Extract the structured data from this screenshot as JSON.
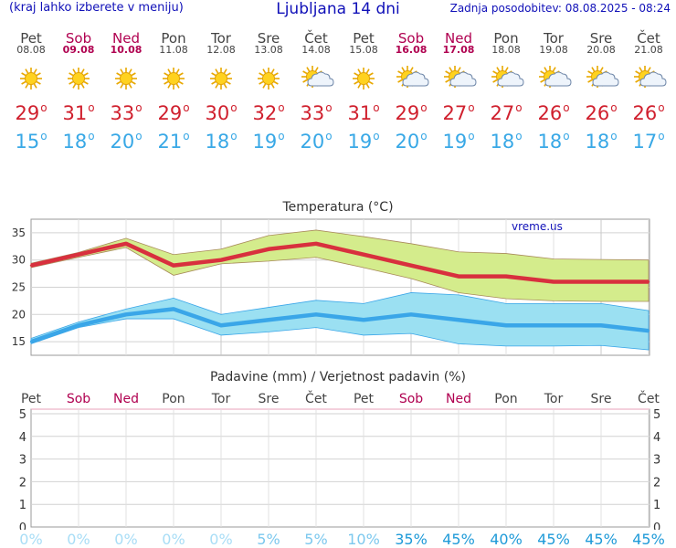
{
  "header": {
    "left": "(kraj lahko izberete v meniju)",
    "title": "Ljubljana 14 dni",
    "right": "Zadnja posodobitev: 08.08.2025 - 08:24"
  },
  "days": [
    {
      "name": "Pet",
      "date": "08.08",
      "weekend": false,
      "icon": "sun-icon",
      "tmax": "29",
      "tmin": "15"
    },
    {
      "name": "Sob",
      "date": "09.08",
      "weekend": true,
      "icon": "sun-icon",
      "tmax": "31",
      "tmin": "18"
    },
    {
      "name": "Ned",
      "date": "10.08",
      "weekend": true,
      "icon": "sun-icon",
      "tmax": "33",
      "tmin": "20"
    },
    {
      "name": "Pon",
      "date": "11.08",
      "weekend": false,
      "icon": "sun-icon",
      "tmax": "29",
      "tmin": "21"
    },
    {
      "name": "Tor",
      "date": "12.08",
      "weekend": false,
      "icon": "sun-icon",
      "tmax": "30",
      "tmin": "18"
    },
    {
      "name": "Sre",
      "date": "13.08",
      "weekend": false,
      "icon": "sun-icon",
      "tmax": "32",
      "tmin": "19"
    },
    {
      "name": "Čet",
      "date": "14.08",
      "weekend": false,
      "icon": "sun-cloud-icon",
      "tmax": "33",
      "tmin": "20"
    },
    {
      "name": "Pet",
      "date": "15.08",
      "weekend": false,
      "icon": "sun-icon",
      "tmax": "31",
      "tmin": "19"
    },
    {
      "name": "Sob",
      "date": "16.08",
      "weekend": true,
      "icon": "sun-cloud-icon",
      "tmax": "29",
      "tmin": "20"
    },
    {
      "name": "Ned",
      "date": "17.08",
      "weekend": true,
      "icon": "sun-cloud-icon",
      "tmax": "27",
      "tmin": "19"
    },
    {
      "name": "Pon",
      "date": "18.08",
      "weekend": false,
      "icon": "sun-cloud-icon",
      "tmax": "27",
      "tmin": "18"
    },
    {
      "name": "Tor",
      "date": "19.08",
      "weekend": false,
      "icon": "sun-cloud-icon",
      "tmax": "26",
      "tmin": "18"
    },
    {
      "name": "Sre",
      "date": "20.08",
      "weekend": false,
      "icon": "sun-cloud-icon",
      "tmax": "26",
      "tmin": "18"
    },
    {
      "name": "Čet",
      "date": "21.08",
      "weekend": false,
      "icon": "sun-cloud-icon",
      "tmax": "26",
      "tmin": "17"
    }
  ],
  "degree_symbol": "o",
  "watermark": "vreme.us",
  "colors": {
    "max_line": "#d8303e",
    "max_band": "#d4ec8c",
    "min_line": "#3aa6e8",
    "min_band": "#9be0f2",
    "weekend": "#b00050",
    "precip_line": "#e8a0b8"
  },
  "chart_data": [
    {
      "type": "line",
      "title": "Temperatura (°C)",
      "xlabel": "",
      "ylabel": "",
      "categories": [
        "08.08",
        "09.08",
        "10.08",
        "11.08",
        "12.08",
        "13.08",
        "14.08",
        "15.08",
        "16.08",
        "17.08",
        "18.08",
        "19.08",
        "20.08",
        "21.08"
      ],
      "ylim": [
        12.5,
        37.5
      ],
      "yticks": [
        15,
        20,
        25,
        30,
        35
      ],
      "grid": true,
      "series": [
        {
          "role": "max",
          "values": [
            29,
            31,
            33,
            29,
            30,
            32,
            33,
            31,
            29,
            27,
            27,
            26,
            26,
            26
          ]
        },
        {
          "role": "max_band_upper",
          "values": [
            29.4,
            31.4,
            34,
            31,
            32,
            34.5,
            35.5,
            34.3,
            33,
            31.5,
            31.2,
            30.2,
            30.1,
            30
          ]
        },
        {
          "role": "max_band_lower",
          "values": [
            28.6,
            30.5,
            32.3,
            27.2,
            29.3,
            29.8,
            30.5,
            28.6,
            26.6,
            24,
            22.9,
            22.5,
            22.4,
            22.4
          ]
        },
        {
          "role": "min",
          "values": [
            15,
            18,
            20,
            21,
            18,
            19,
            20,
            19,
            20,
            19,
            18,
            18,
            18,
            17
          ]
        },
        {
          "role": "min_band_upper",
          "values": [
            15.6,
            18.6,
            21,
            23,
            20,
            21.3,
            22.6,
            22,
            24,
            23.6,
            22,
            22,
            22,
            20.7
          ]
        },
        {
          "role": "min_band_lower",
          "values": [
            14.6,
            17.6,
            19.2,
            19.2,
            16.2,
            16.8,
            17.6,
            16.2,
            16.5,
            14.6,
            14.2,
            14.2,
            14.3,
            13.5
          ]
        }
      ]
    },
    {
      "type": "bar",
      "title": "Padavine (mm) / Verjetnost padavin (%)",
      "xlabel": "",
      "ylabel": "",
      "categories": [
        "Pet",
        "Sob",
        "Ned",
        "Pon",
        "Tor",
        "Sre",
        "Čet",
        "Pet",
        "Sob",
        "Ned",
        "Pon",
        "Tor",
        "Sre",
        "Čet"
      ],
      "ylim": [
        0,
        5.2
      ],
      "yticks": [
        0,
        1,
        2,
        3,
        4,
        5
      ],
      "grid": true,
      "series": [
        {
          "name": "mm",
          "values": [
            0,
            0,
            0,
            0,
            0,
            0,
            0,
            0,
            0,
            0,
            0,
            0,
            0,
            0
          ]
        }
      ],
      "probability": [
        "0%",
        "0%",
        "0%",
        "0%",
        "0%",
        "5%",
        "5%",
        "10%",
        "35%",
        "45%",
        "40%",
        "45%",
        "45%",
        "45%"
      ]
    }
  ]
}
